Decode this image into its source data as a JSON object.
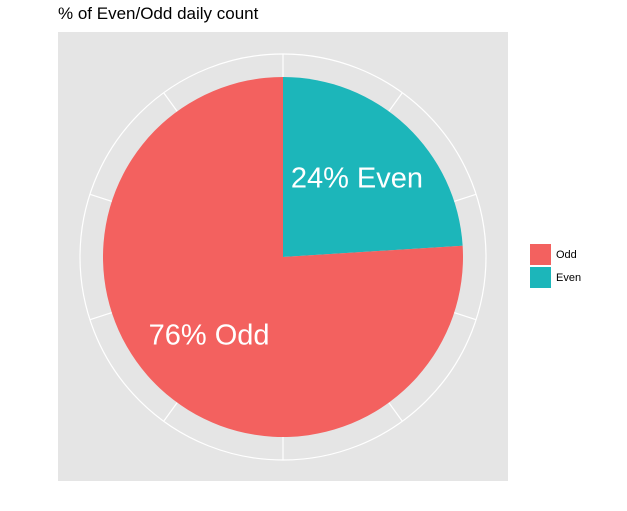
{
  "chart_data": {
    "type": "pie",
    "title": "% of Even/Odd daily count",
    "slices": [
      {
        "label": "Even",
        "value": 24,
        "color": "#1cb6ba",
        "text": "24% Even"
      },
      {
        "label": "Odd",
        "value": 76,
        "color": "#f3615f",
        "text": "76% Odd"
      }
    ],
    "legend": {
      "position": "right",
      "entries": [
        {
          "label": "Odd",
          "color": "#f3615f"
        },
        {
          "label": "Even",
          "color": "#1cb6ba"
        }
      ]
    },
    "grid": true,
    "panel_background": "#e5e5e5",
    "grid_color": "#ffffff"
  }
}
